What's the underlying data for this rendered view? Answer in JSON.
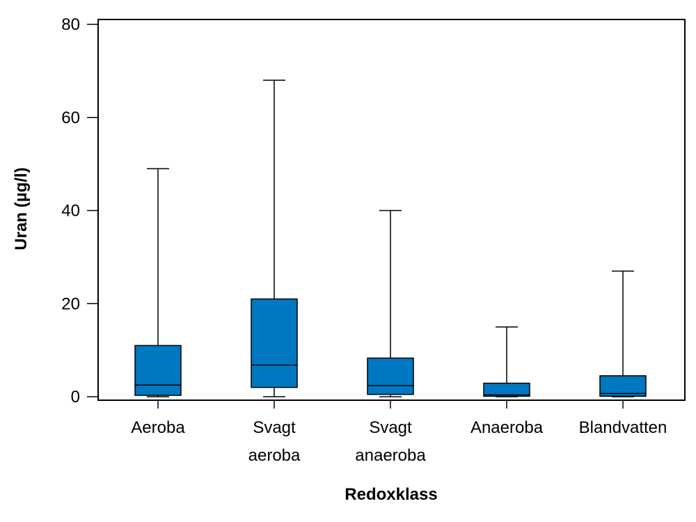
{
  "chart_data": {
    "type": "boxplot",
    "title": "",
    "xlabel": "Redoxklass",
    "ylabel": "Uran (µg/l)",
    "ylim": [
      0,
      80
    ],
    "yticks": [
      0,
      20,
      40,
      60,
      80
    ],
    "grid": false,
    "box_color": "#0078c1",
    "categories": [
      {
        "label_lines": [
          "Aeroba"
        ],
        "whisker_low": 0,
        "q1": 0.3,
        "median": 2.5,
        "q3": 11,
        "whisker_high": 49
      },
      {
        "label_lines": [
          "Svagt",
          "aeroba"
        ],
        "whisker_low": 0,
        "q1": 2,
        "median": 6.8,
        "q3": 21,
        "whisker_high": 68
      },
      {
        "label_lines": [
          "Svagt",
          "anaeroba"
        ],
        "whisker_low": 0,
        "q1": 0.5,
        "median": 2.4,
        "q3": 8.3,
        "whisker_high": 40
      },
      {
        "label_lines": [
          "Anaeroba"
        ],
        "whisker_low": 0,
        "q1": 0.1,
        "median": 0.4,
        "q3": 2.9,
        "whisker_high": 15
      },
      {
        "label_lines": [
          "Blandvatten"
        ],
        "whisker_low": 0,
        "q1": 0.1,
        "median": 0.7,
        "q3": 4.5,
        "whisker_high": 27
      }
    ]
  }
}
